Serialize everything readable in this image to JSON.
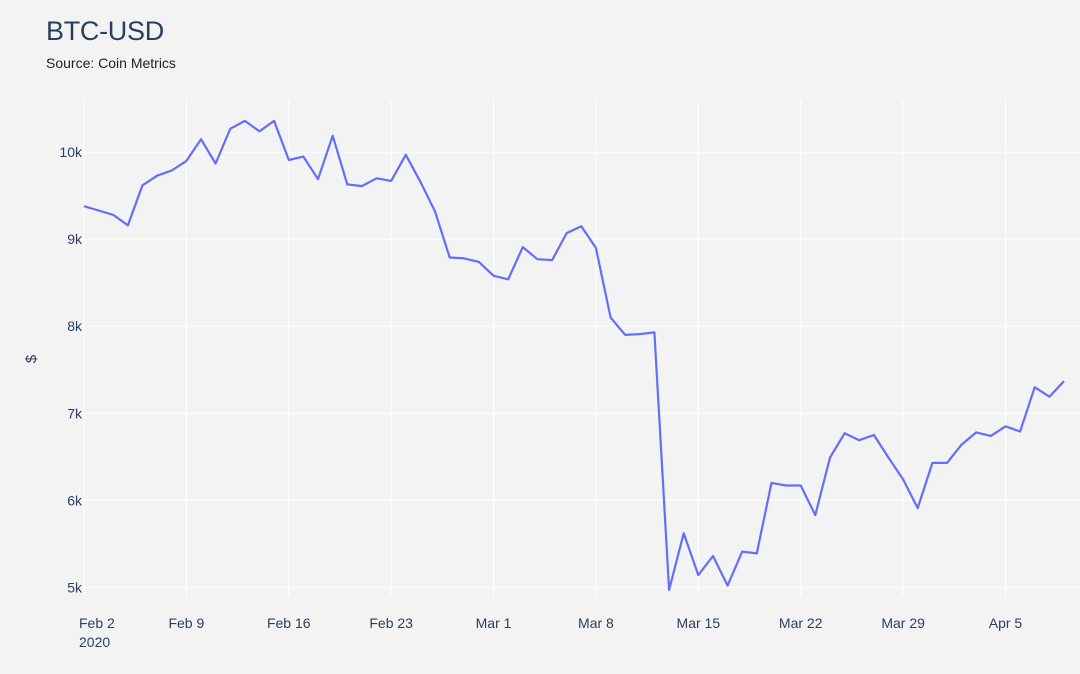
{
  "colors": {
    "background": "#f3f3f3",
    "grid": "#ffffff",
    "line": "#636efa",
    "text": "#2a3f5f"
  },
  "chart_data": {
    "type": "line",
    "title": "BTC-USD",
    "subtitle": "Source: Coin Metrics",
    "ylabel": "$",
    "xlabel": "",
    "grid": true,
    "ylim": [
      4900,
      10600
    ],
    "xlim": [
      "2020-02-02",
      "2020-04-09"
    ],
    "y_ticks": [
      {
        "value": 5000,
        "label": "5k"
      },
      {
        "value": 6000,
        "label": "6k"
      },
      {
        "value": 7000,
        "label": "7k"
      },
      {
        "value": 8000,
        "label": "8k"
      },
      {
        "value": 9000,
        "label": "9k"
      },
      {
        "value": 10000,
        "label": "10k"
      }
    ],
    "x_ticks": [
      {
        "date": "2020-02-02",
        "label": "Feb 2",
        "sublabel": "2020"
      },
      {
        "date": "2020-02-09",
        "label": "Feb 9"
      },
      {
        "date": "2020-02-16",
        "label": "Feb 16"
      },
      {
        "date": "2020-02-23",
        "label": "Feb 23"
      },
      {
        "date": "2020-03-01",
        "label": "Mar 1"
      },
      {
        "date": "2020-03-08",
        "label": "Mar 8"
      },
      {
        "date": "2020-03-15",
        "label": "Mar 15"
      },
      {
        "date": "2020-03-22",
        "label": "Mar 22"
      },
      {
        "date": "2020-03-29",
        "label": "Mar 29"
      },
      {
        "date": "2020-04-05",
        "label": "Apr 5"
      }
    ],
    "series": [
      {
        "x": [
          "2020-02-02",
          "2020-02-03",
          "2020-02-04",
          "2020-02-05",
          "2020-02-06",
          "2020-02-07",
          "2020-02-08",
          "2020-02-09",
          "2020-02-10",
          "2020-02-11",
          "2020-02-12",
          "2020-02-13",
          "2020-02-14",
          "2020-02-15",
          "2020-02-16",
          "2020-02-17",
          "2020-02-18",
          "2020-02-19",
          "2020-02-20",
          "2020-02-21",
          "2020-02-22",
          "2020-02-23",
          "2020-02-24",
          "2020-02-25",
          "2020-02-26",
          "2020-02-27",
          "2020-02-28",
          "2020-02-29",
          "2020-03-01",
          "2020-03-02",
          "2020-03-03",
          "2020-03-04",
          "2020-03-05",
          "2020-03-06",
          "2020-03-07",
          "2020-03-08",
          "2020-03-09",
          "2020-03-10",
          "2020-03-11",
          "2020-03-12",
          "2020-03-13",
          "2020-03-14",
          "2020-03-15",
          "2020-03-16",
          "2020-03-17",
          "2020-03-18",
          "2020-03-19",
          "2020-03-20",
          "2020-03-21",
          "2020-03-22",
          "2020-03-23",
          "2020-03-24",
          "2020-03-25",
          "2020-03-26",
          "2020-03-27",
          "2020-03-28",
          "2020-03-29",
          "2020-03-30",
          "2020-03-31",
          "2020-04-01",
          "2020-04-02",
          "2020-04-03",
          "2020-04-04",
          "2020-04-05",
          "2020-04-06",
          "2020-04-07",
          "2020-04-08",
          "2020-04-09"
        ],
        "y": [
          9380,
          9330,
          9280,
          9160,
          9620,
          9730,
          9790,
          9900,
          10150,
          9870,
          10270,
          10360,
          10240,
          10360,
          9910,
          9950,
          9690,
          10190,
          9630,
          9610,
          9700,
          9670,
          9970,
          9660,
          9320,
          8790,
          8780,
          8740,
          8580,
          8540,
          8910,
          8770,
          8760,
          9070,
          9150,
          8900,
          8100,
          7900,
          7910,
          7930,
          4970,
          5620,
          5140,
          5360,
          5020,
          5410,
          5390,
          6200,
          6170,
          6170,
          5830,
          6490,
          6770,
          6690,
          6750,
          6490,
          6240,
          5910,
          6430,
          6430,
          6640,
          6780,
          6740,
          6850,
          6790,
          7300,
          7190,
          7370
        ]
      }
    ]
  }
}
